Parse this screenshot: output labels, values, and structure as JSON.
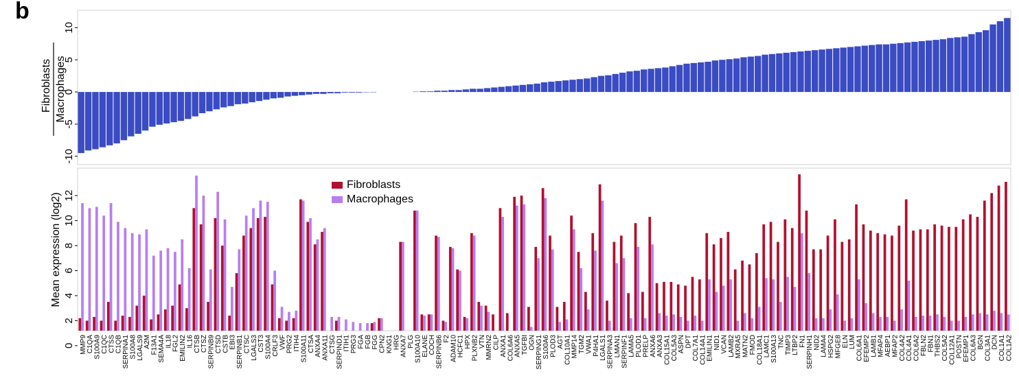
{
  "panel_label": "b",
  "chart_data": [
    {
      "type": "bar",
      "ylabel_numerator": "Fibroblasts",
      "ylabel_denominator": "Macrophages",
      "color": "#3a4bc3",
      "ylim": [
        -11.3,
        12.7
      ],
      "yticks": [
        -10,
        -5,
        0,
        5,
        10
      ],
      "values": [
        -9.5,
        -9.1,
        -8.9,
        -8.6,
        -8.3,
        -8.0,
        -7.5,
        -6.9,
        -6.5,
        -6.0,
        -5.4,
        -5.1,
        -4.9,
        -4.7,
        -4.5,
        -4.2,
        -3.8,
        -3.3,
        -3.0,
        -2.7,
        -2.4,
        -2.2,
        -1.9,
        -1.8,
        -1.6,
        -1.4,
        -1.2,
        -1.0,
        -0.9,
        -0.7,
        -0.6,
        -0.5,
        -0.4,
        -0.3,
        -0.3,
        -0.2,
        -0.2,
        -0.1,
        -0.1,
        -0.1,
        -0.05,
        -0.05,
        0,
        0,
        0,
        0,
        0,
        0.05,
        0.1,
        0.1,
        0.2,
        0.2,
        0.3,
        0.3,
        0.4,
        0.5,
        0.5,
        0.6,
        0.7,
        0.8,
        0.9,
        1.0,
        1.1,
        1.2,
        1.3,
        1.5,
        1.6,
        1.7,
        1.8,
        1.9,
        2.0,
        2.1,
        2.3,
        2.5,
        2.6,
        2.8,
        3.0,
        3.2,
        3.3,
        3.5,
        3.6,
        3.7,
        3.8,
        4.0,
        4.2,
        4.4,
        4.5,
        4.6,
        4.7,
        4.9,
        5.0,
        5.1,
        5.2,
        5.4,
        5.5,
        5.6,
        5.8,
        5.9,
        6.0,
        6.1,
        6.2,
        6.3,
        6.4,
        6.5,
        6.6,
        6.7,
        6.8,
        6.9,
        7.0,
        7.1,
        7.2,
        7.3,
        7.4,
        7.4,
        7.5,
        7.6,
        7.7,
        7.8,
        7.9,
        8.0,
        8.1,
        8.2,
        8.4,
        8.5,
        8.6,
        9.0,
        9.3,
        9.6,
        10.5,
        11.0,
        11.5
      ]
    },
    {
      "type": "grouped_bar",
      "ylabel": "Mean expression (log2)",
      "legend": "upper center",
      "ylim": [
        1.2,
        14.2
      ],
      "yticks": [
        0,
        2,
        4,
        6,
        8,
        10,
        12
      ],
      "categories": [
        "MMP9",
        "C1QA",
        "S100A9",
        "C1QC",
        "CTSS",
        "C1QB",
        "SERPINA1",
        "S100A8",
        "LGALS9",
        "A2M",
        "F13A1",
        "SEMA4A",
        "IL18",
        "FGL2",
        "EMILIN2",
        "IL16",
        "CTSB",
        "CTSZ",
        "SERPINB9",
        "CTSD",
        "CSTB",
        "EBI3",
        "SERPINB1",
        "CTSC",
        "LGALS3",
        "CST3",
        "S100A4",
        "CRLF3",
        "VWF",
        "PRG2",
        "ITIH4",
        "S100A11",
        "CTSA",
        "ANXA4",
        "ANXA11",
        "CTSG",
        "SERPIND1",
        "ITIH1",
        "PRG3",
        "FGA",
        "FGB",
        "FGG",
        "CPN2",
        "KNG1",
        "HRG",
        "ANXA7",
        "PLG",
        "S100A10",
        "ELANE",
        "COCH",
        "SERPINB6",
        "F2",
        "ADAM10",
        "HCFC1",
        "HPX",
        "PLXNB2",
        "VTN",
        "MMRN2",
        "CILP",
        "ANXA1",
        "COL6A6",
        "ANXA5",
        "TGFBI",
        "OGN",
        "SERPING1",
        "S100A6",
        "PLOD3",
        "AGT",
        "COL10A1",
        "MMP14",
        "TGM2",
        "VWA1",
        "P4HA1",
        "LGALS1",
        "SERPINA3",
        "LMAN1",
        "SERPINF1",
        "LAMA5",
        "PLOD1",
        "PRELP",
        "ANXA6",
        "ANXA3",
        "COL15A1",
        "COL5A3",
        "ASPN",
        "DPT",
        "COL7A1",
        "COL14A1",
        "EMILIN1",
        "NID1",
        "VCAN",
        "LAMB2",
        "MXRA5",
        "MATN2",
        "FMOD",
        "COL18A1",
        "LAMC1",
        "S100A13",
        "TNC",
        "TIMP3",
        "LTBP2",
        "FN1",
        "SERPINH1",
        "NID2",
        "LAMA4",
        "HSPG2",
        "MFGE8",
        "ELN",
        "LUM",
        "COL6A1",
        "EFEMP2",
        "LAMB1",
        "MFAP4",
        "AEBP1",
        "MFAP2",
        "COL4A2",
        "COL4A1",
        "COL6A2",
        "FBLN2",
        "FBN1",
        "THBS2",
        "COL5A2",
        "COL12A1",
        "POSTN",
        "EFEMP1",
        "COL6A3",
        "BGN",
        "COL3A1",
        "DCN",
        "COL1A1",
        "COL1A2"
      ],
      "series": [
        {
          "name": "Fibroblasts",
          "color": "#b2102f",
          "values": [
            2.2,
            2.0,
            2.3,
            2.0,
            3.5,
            2.0,
            2.4,
            2.3,
            3.2,
            4.0,
            2.1,
            2.5,
            2.9,
            3.2,
            4.9,
            3.0,
            11.0,
            9.7,
            3.5,
            10.2,
            8.0,
            2.4,
            5.8,
            8.8,
            9.4,
            10.2,
            10.3,
            4.9,
            2.2,
            2.0,
            2.2,
            11.7,
            9.9,
            8.1,
            9.1,
            null,
            2.0,
            null,
            null,
            null,
            null,
            1.8,
            2.2,
            null,
            null,
            8.3,
            null,
            10.8,
            2.5,
            2.5,
            8.8,
            2.0,
            7.9,
            6.1,
            2.3,
            9.0,
            3.5,
            3.2,
            2.5,
            11.0,
            2.6,
            11.9,
            12.0,
            3.1,
            7.9,
            12.6,
            8.8,
            3.1,
            3.5,
            10.4,
            7.5,
            4.3,
            9.0,
            12.9,
            3.6,
            8.3,
            8.8,
            4.2,
            9.8,
            4.3,
            10.3,
            5.0,
            5.1,
            5.1,
            4.9,
            4.8,
            5.5,
            5.3,
            9.0,
            8.1,
            8.6,
            9.1,
            6.1,
            6.8,
            6.5,
            7.4,
            9.7,
            9.9,
            8.3,
            10.1,
            9.4,
            13.7,
            10.8,
            7.7,
            7.7,
            8.8,
            10.1,
            8.3,
            8.5,
            11.3,
            9.7,
            9.2,
            9.0,
            8.9,
            8.8,
            9.6,
            11.7,
            9.2,
            9.3,
            9.3,
            9.7,
            9.6,
            9.5,
            9.5,
            10.1,
            10.5,
            10.3,
            11.6,
            12.2,
            12.8,
            13.1
          ]
        },
        {
          "name": "Macrophages",
          "color": "#b77ef0",
          "values": [
            11.4,
            11.0,
            11.1,
            10.4,
            11.4,
            9.9,
            9.4,
            9.0,
            8.9,
            9.3,
            7.2,
            7.6,
            7.8,
            7.5,
            8.5,
            6.2,
            13.6,
            12.0,
            6.1,
            12.3,
            10.1,
            4.7,
            7.7,
            10.4,
            11.0,
            11.6,
            11.5,
            6.0,
            3.1,
            2.7,
            2.8,
            11.6,
            10.2,
            8.5,
            9.4,
            2.3,
            2.3,
            2.1,
            1.9,
            1.8,
            1.8,
            1.9,
            2.2,
            null,
            null,
            8.3,
            null,
            10.8,
            2.4,
            2.5,
            8.7,
            1.9,
            7.8,
            6.0,
            2.2,
            8.8,
            3.2,
            2.7,
            null,
            10.3,
            null,
            11.2,
            11.3,
            1.5,
            7.0,
            11.8,
            7.7,
            1.9,
            2.1,
            9.3,
            6.2,
            2.9,
            7.6,
            11.6,
            2.0,
            6.6,
            7.0,
            2.2,
            7.9,
            2.2,
            8.1,
            2.6,
            2.4,
            2.5,
            2.3,
            2.0,
            2.4,
            2.0,
            5.3,
            4.3,
            4.8,
            5.3,
            2.0,
            2.6,
            2.2,
            3.1,
            5.4,
            5.3,
            3.5,
            5.5,
            4.7,
            9.0,
            5.8,
            2.2,
            2.2,
            2.9,
            4.1,
            2.0,
            2.2,
            5.3,
            3.4,
            2.6,
            2.3,
            2.3,
            2.0,
            2.9,
            5.2,
            2.3,
            2.4,
            2.4,
            2.5,
            2.3,
            2.0,
            2.0,
            2.3,
            2.5,
            2.6,
            2.5,
            2.8,
            2.6,
            2.5
          ]
        }
      ]
    }
  ]
}
